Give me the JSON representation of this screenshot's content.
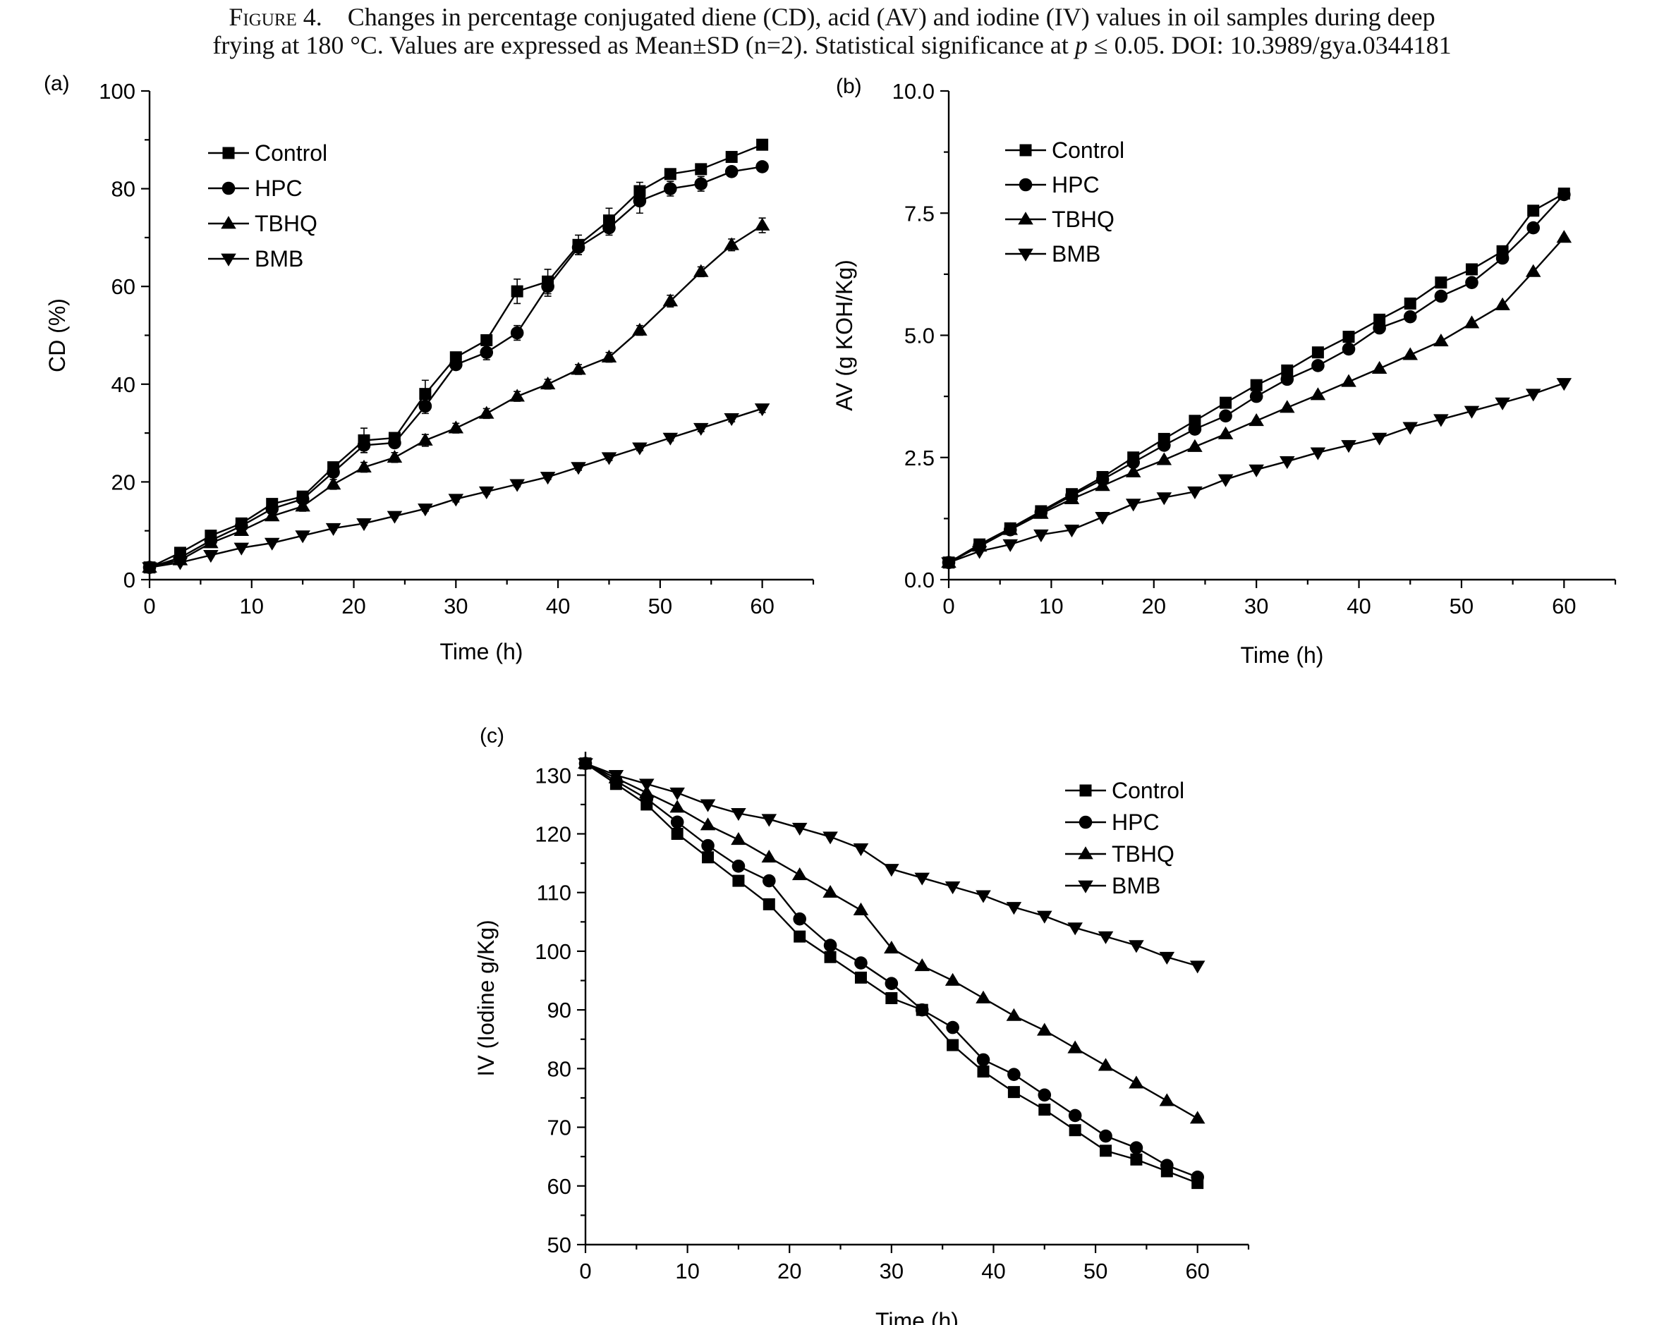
{
  "caption": {
    "label": "Figure 4.",
    "line1": "Changes in percentage conjugated diene (CD), acid (AV) and iodine (IV) values in oil samples during deep",
    "line2": "frying at 180 °C. Values are expressed as Mean±SD (n=2). Statistical significance at ",
    "p_symbol": "p",
    "line2_tail": " ≤ 0.05. DOI: 10.3989/gya.0344181"
  },
  "chart_data": [
    {
      "panel": "(a)",
      "type": "line",
      "xlabel": "Time (h)",
      "ylabel": "CD (%)",
      "xlim": [
        0,
        65
      ],
      "ylim": [
        0,
        100
      ],
      "xticks": [
        0,
        10,
        20,
        30,
        40,
        50,
        60
      ],
      "yticks": [
        0,
        20,
        40,
        60,
        80,
        100
      ],
      "legend_position": "top-left",
      "x": [
        0,
        3,
        6,
        9,
        12,
        15,
        18,
        21,
        24,
        27,
        30,
        33,
        36,
        39,
        42,
        45,
        48,
        51,
        54,
        57,
        60
      ],
      "series": [
        {
          "name": "Control",
          "marker": "square",
          "values": [
            2.5,
            5.5,
            9,
            11.5,
            15.5,
            17,
            23,
            28.5,
            29,
            38,
            45.5,
            49,
            59,
            61,
            68.5,
            73.5,
            79.5,
            83,
            84,
            86.5,
            89
          ],
          "error": [
            0.5,
            0.5,
            0.6,
            0.6,
            0.8,
            0.8,
            1,
            2.5,
            1,
            2.8,
            1,
            1,
            2.5,
            2.5,
            2,
            2.5,
            1.8,
            1,
            1,
            1,
            1
          ]
        },
        {
          "name": "HPC",
          "marker": "circle",
          "values": [
            2.5,
            4.5,
            8,
            11,
            14.5,
            16.5,
            22,
            27.5,
            28,
            35.5,
            44,
            46.5,
            50.5,
            60,
            68,
            72,
            77.5,
            80,
            81,
            83.5,
            84.5
          ],
          "error": [
            0.5,
            0.5,
            0.6,
            0.6,
            0.8,
            0.8,
            1,
            1.5,
            1,
            1.5,
            1,
            1.5,
            1.5,
            2,
            1.5,
            1.5,
            2.5,
            1.5,
            1.5,
            1,
            1
          ]
        },
        {
          "name": "TBHQ",
          "marker": "triangle-up",
          "values": [
            2.5,
            4,
            7.5,
            10,
            13,
            15,
            19.5,
            23,
            25,
            28.5,
            31,
            34,
            37.5,
            40,
            43,
            45.5,
            51,
            57,
            63,
            68.5,
            72.5
          ],
          "error": [
            0.4,
            0.4,
            0.5,
            0.6,
            0.8,
            1,
            1,
            1,
            1,
            1.2,
            1,
            1,
            1,
            1,
            1,
            1,
            1,
            1.2,
            1,
            1.2,
            1.5
          ]
        },
        {
          "name": "BMB",
          "marker": "triangle-down",
          "values": [
            2.5,
            3.5,
            5,
            6.5,
            7.5,
            9,
            10.5,
            11.5,
            13,
            14.5,
            16.5,
            18,
            19.5,
            21,
            23,
            25,
            27,
            29,
            31,
            33,
            35
          ],
          "error": [
            0.3,
            0.3,
            0.3,
            0.3,
            0.3,
            0.3,
            0.4,
            0.4,
            0.4,
            0.5,
            0.6,
            0.5,
            0.5,
            0.5,
            0.6,
            0.6,
            0.6,
            0.6,
            0.7,
            0.7,
            0.8
          ]
        }
      ]
    },
    {
      "panel": "(b)",
      "type": "line",
      "xlabel": "Time (h)",
      "ylabel": "AV (g KOH/Kg)",
      "xlim": [
        0,
        65
      ],
      "ylim": [
        0,
        10
      ],
      "xticks": [
        0,
        10,
        20,
        30,
        40,
        50,
        60
      ],
      "yticks": [
        0.0,
        2.5,
        5.0,
        7.5,
        10.0
      ],
      "ytick_labels": [
        "0.0",
        "2.5",
        "5.0",
        "7.5",
        "10.0"
      ],
      "legend_position": "top-left",
      "x": [
        0,
        3,
        6,
        9,
        12,
        15,
        18,
        21,
        24,
        27,
        30,
        33,
        36,
        39,
        42,
        45,
        48,
        51,
        54,
        57,
        60
      ],
      "series": [
        {
          "name": "Control",
          "marker": "square",
          "values": [
            0.35,
            0.72,
            1.05,
            1.4,
            1.75,
            2.1,
            2.5,
            2.88,
            3.25,
            3.62,
            3.98,
            4.28,
            4.65,
            4.97,
            5.32,
            5.65,
            6.08,
            6.35,
            6.72,
            7.55,
            7.9
          ]
        },
        {
          "name": "HPC",
          "marker": "circle",
          "values": [
            0.35,
            0.7,
            1.02,
            1.38,
            1.72,
            2.05,
            2.4,
            2.75,
            3.08,
            3.35,
            3.75,
            4.1,
            4.38,
            4.72,
            5.15,
            5.38,
            5.8,
            6.08,
            6.58,
            7.2,
            7.88
          ]
        },
        {
          "name": "TBHQ",
          "marker": "triangle-up",
          "values": [
            0.35,
            0.68,
            1.02,
            1.35,
            1.65,
            1.92,
            2.2,
            2.45,
            2.72,
            2.98,
            3.25,
            3.52,
            3.78,
            4.05,
            4.32,
            4.6,
            4.88,
            5.25,
            5.62,
            6.3,
            7.0
          ]
        },
        {
          "name": "BMB",
          "marker": "triangle-down",
          "values": [
            0.35,
            0.58,
            0.72,
            0.92,
            1.02,
            1.28,
            1.55,
            1.68,
            1.8,
            2.05,
            2.25,
            2.42,
            2.6,
            2.75,
            2.9,
            3.12,
            3.28,
            3.45,
            3.62,
            3.8,
            4.02
          ]
        }
      ]
    },
    {
      "panel": "(c)",
      "type": "line",
      "xlabel": "Time (h)",
      "ylabel": "IV (Iodine g/Kg)",
      "xlim": [
        0,
        65
      ],
      "ylim": [
        50,
        134
      ],
      "xticks": [
        0,
        10,
        20,
        30,
        40,
        50,
        60
      ],
      "yticks": [
        50,
        60,
        70,
        80,
        90,
        100,
        110,
        120,
        130
      ],
      "legend_position": "top-right",
      "x": [
        0,
        3,
        6,
        9,
        12,
        15,
        18,
        21,
        24,
        27,
        30,
        33,
        36,
        39,
        42,
        45,
        48,
        51,
        54,
        57,
        60
      ],
      "series": [
        {
          "name": "Control",
          "marker": "square",
          "values": [
            132,
            128.5,
            125,
            120,
            116,
            112,
            108,
            102.5,
            99,
            95.5,
            92,
            90,
            84,
            79.5,
            76,
            73,
            69.5,
            66,
            64.5,
            62.5,
            60.5
          ]
        },
        {
          "name": "HPC",
          "marker": "circle",
          "values": [
            132,
            129,
            126,
            122,
            118,
            114.5,
            112,
            105.5,
            101,
            98,
            94.5,
            90,
            87,
            81.5,
            79,
            75.5,
            72,
            68.5,
            66.5,
            63.5,
            61.5
          ]
        },
        {
          "name": "TBHQ",
          "marker": "triangle-up",
          "values": [
            132,
            129.5,
            127,
            124.5,
            121.5,
            119,
            116,
            113,
            110,
            107,
            100.5,
            97.5,
            95,
            92,
            89,
            86.5,
            83.5,
            80.5,
            77.5,
            74.5,
            71.5
          ]
        },
        {
          "name": "BMB",
          "marker": "triangle-down",
          "values": [
            132,
            130,
            128.5,
            127,
            125,
            123.5,
            122.5,
            121,
            119.5,
            117.5,
            114,
            112.5,
            111,
            109.5,
            107.5,
            106,
            104,
            102.5,
            101,
            99,
            97.5
          ]
        }
      ]
    }
  ]
}
